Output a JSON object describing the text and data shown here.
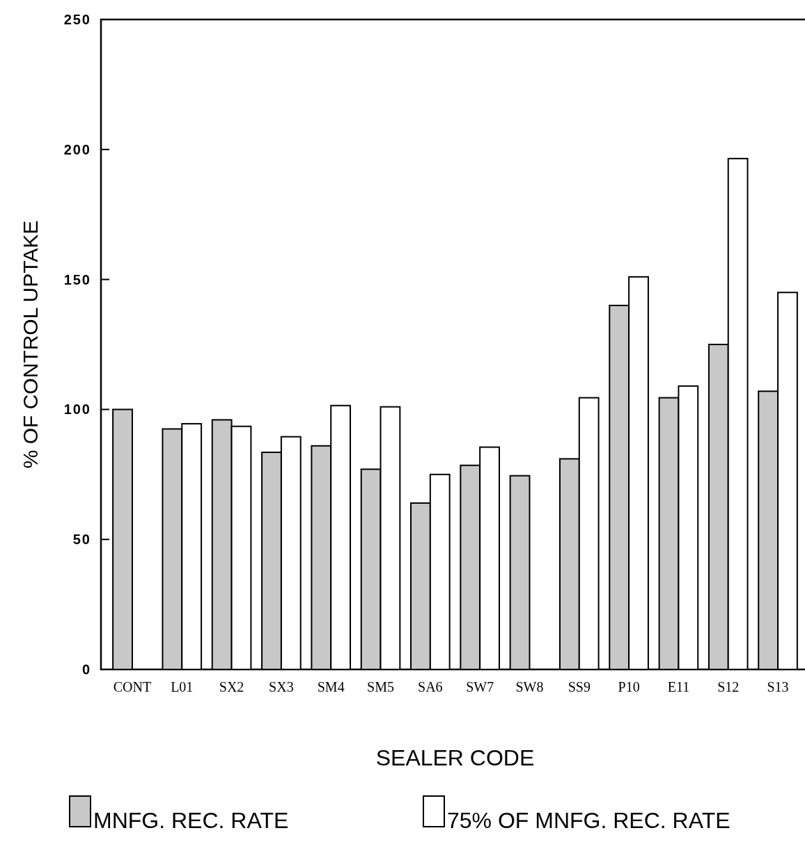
{
  "chart_data": {
    "type": "bar",
    "xlabel": "SEALER CODE",
    "ylabel": "% OF CONTROL UPTAKE",
    "categories": [
      "CONT",
      "L01",
      "SX2",
      "SX3",
      "SM4",
      "SM5",
      "SA6",
      "SW7",
      "SW8",
      "SS9",
      "P10",
      "E11",
      "S12",
      "S13"
    ],
    "series": [
      {
        "name": "MNFG. REC. RATE",
        "color": "#c8c8c8",
        "values": [
          100,
          92.5,
          96,
          83.5,
          86,
          77,
          64,
          78.5,
          74.5,
          81,
          140,
          104.5,
          125,
          107
        ]
      },
      {
        "name": "75% OF MNFG. REC. RATE",
        "color": "#ffffff",
        "values": [
          null,
          94.5,
          93.5,
          89.5,
          101.5,
          101,
          75,
          85.5,
          null,
          104.5,
          151,
          109,
          196.5,
          145
        ]
      }
    ],
    "ylim": [
      0,
      250
    ],
    "yticks": [
      0,
      50,
      100,
      150,
      200,
      250
    ],
    "grid": false,
    "legend": "bottom"
  }
}
